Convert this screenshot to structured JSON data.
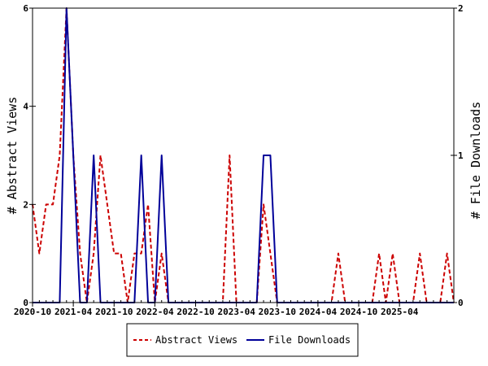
{
  "chart_data": {
    "type": "line",
    "x_tick_labels": [
      "2020-10",
      "2021-04",
      "2021-10",
      "2022-04",
      "2022-10",
      "2023-04",
      "2023-10",
      "2024-04",
      "2024-10",
      "2025-04"
    ],
    "x_range": [
      "2020-10",
      "2025-12"
    ],
    "left_axis": {
      "label": "# Abstract Views",
      "ylim": [
        0,
        6
      ],
      "ticks": [
        "0",
        "2",
        "4",
        "6"
      ]
    },
    "right_axis": {
      "label": "# File Downloads",
      "ylim": [
        0,
        2
      ],
      "ticks": [
        "0",
        "1",
        "2"
      ]
    },
    "grid": false,
    "legend_position": "bottom-center",
    "series": [
      {
        "name": "Abstract Views",
        "axis": "left",
        "color": "#cc0000",
        "style": "dashed",
        "values": [
          [
            "2020-10",
            2
          ],
          [
            "2020-11",
            1
          ],
          [
            "2020-12",
            2
          ],
          [
            "2021-01",
            2
          ],
          [
            "2021-02",
            3
          ],
          [
            "2021-03",
            6
          ],
          [
            "2021-04",
            3
          ],
          [
            "2021-05",
            1
          ],
          [
            "2021-06",
            0
          ],
          [
            "2021-07",
            1
          ],
          [
            "2021-08",
            3
          ],
          [
            "2021-09",
            2
          ],
          [
            "2021-10",
            1
          ],
          [
            "2021-11",
            1
          ],
          [
            "2021-12",
            0
          ],
          [
            "2022-01",
            1
          ],
          [
            "2022-02",
            1
          ],
          [
            "2022-03",
            2
          ],
          [
            "2022-04",
            0
          ],
          [
            "2022-05",
            1
          ],
          [
            "2022-06",
            0
          ],
          [
            "2022-07",
            0
          ],
          [
            "2022-08",
            0
          ],
          [
            "2022-09",
            0
          ],
          [
            "2022-10",
            0
          ],
          [
            "2022-11",
            0
          ],
          [
            "2022-12",
            0
          ],
          [
            "2023-01",
            0
          ],
          [
            "2023-02",
            0
          ],
          [
            "2023-03",
            3
          ],
          [
            "2023-04",
            0
          ],
          [
            "2023-05",
            0
          ],
          [
            "2023-06",
            0
          ],
          [
            "2023-07",
            0
          ],
          [
            "2023-08",
            2
          ],
          [
            "2023-09",
            1
          ],
          [
            "2023-10",
            0
          ],
          [
            "2023-11",
            0
          ],
          [
            "2023-12",
            0
          ],
          [
            "2024-01",
            0
          ],
          [
            "2024-02",
            0
          ],
          [
            "2024-03",
            0
          ],
          [
            "2024-04",
            0
          ],
          [
            "2024-05",
            0
          ],
          [
            "2024-06",
            0
          ],
          [
            "2024-07",
            1
          ],
          [
            "2024-08",
            0
          ],
          [
            "2024-09",
            0
          ],
          [
            "2024-10",
            0
          ],
          [
            "2024-11",
            0
          ],
          [
            "2024-12",
            0
          ],
          [
            "2025-01",
            1
          ],
          [
            "2025-02",
            0
          ],
          [
            "2025-03",
            1
          ],
          [
            "2025-04",
            0
          ],
          [
            "2025-05",
            0
          ],
          [
            "2025-06",
            0
          ],
          [
            "2025-07",
            1
          ],
          [
            "2025-08",
            0
          ],
          [
            "2025-09",
            0
          ],
          [
            "2025-10",
            0
          ],
          [
            "2025-11",
            1
          ],
          [
            "2025-12",
            0
          ]
        ]
      },
      {
        "name": "File Downloads",
        "axis": "right",
        "color": "#000099",
        "style": "solid",
        "values": [
          [
            "2020-10",
            0
          ],
          [
            "2020-11",
            0
          ],
          [
            "2020-12",
            0
          ],
          [
            "2021-01",
            0
          ],
          [
            "2021-02",
            0
          ],
          [
            "2021-03",
            2
          ],
          [
            "2021-04",
            1
          ],
          [
            "2021-05",
            0
          ],
          [
            "2021-06",
            0
          ],
          [
            "2021-07",
            1
          ],
          [
            "2021-08",
            0
          ],
          [
            "2021-09",
            0
          ],
          [
            "2021-10",
            0
          ],
          [
            "2021-11",
            0
          ],
          [
            "2021-12",
            0
          ],
          [
            "2022-01",
            0
          ],
          [
            "2022-02",
            1
          ],
          [
            "2022-03",
            0
          ],
          [
            "2022-04",
            0
          ],
          [
            "2022-05",
            1
          ],
          [
            "2022-06",
            0
          ],
          [
            "2022-07",
            0
          ],
          [
            "2022-08",
            0
          ],
          [
            "2022-09",
            0
          ],
          [
            "2022-10",
            0
          ],
          [
            "2022-11",
            0
          ],
          [
            "2022-12",
            0
          ],
          [
            "2023-01",
            0
          ],
          [
            "2023-02",
            0
          ],
          [
            "2023-03",
            0
          ],
          [
            "2023-04",
            0
          ],
          [
            "2023-05",
            0
          ],
          [
            "2023-06",
            0
          ],
          [
            "2023-07",
            0
          ],
          [
            "2023-08",
            1
          ],
          [
            "2023-09",
            1
          ],
          [
            "2023-10",
            0
          ],
          [
            "2023-11",
            0
          ],
          [
            "2023-12",
            0
          ],
          [
            "2024-01",
            0
          ],
          [
            "2024-02",
            0
          ],
          [
            "2024-03",
            0
          ],
          [
            "2024-04",
            0
          ],
          [
            "2024-05",
            0
          ],
          [
            "2024-06",
            0
          ],
          [
            "2024-07",
            0
          ],
          [
            "2024-08",
            0
          ],
          [
            "2024-09",
            0
          ],
          [
            "2024-10",
            0
          ],
          [
            "2024-11",
            0
          ],
          [
            "2024-12",
            0
          ],
          [
            "2025-01",
            0
          ],
          [
            "2025-02",
            0
          ],
          [
            "2025-03",
            0
          ],
          [
            "2025-04",
            0
          ],
          [
            "2025-05",
            0
          ],
          [
            "2025-06",
            0
          ],
          [
            "2025-07",
            0
          ],
          [
            "2025-08",
            0
          ],
          [
            "2025-09",
            0
          ],
          [
            "2025-10",
            0
          ],
          [
            "2025-11",
            0
          ],
          [
            "2025-12",
            0
          ]
        ]
      }
    ]
  }
}
